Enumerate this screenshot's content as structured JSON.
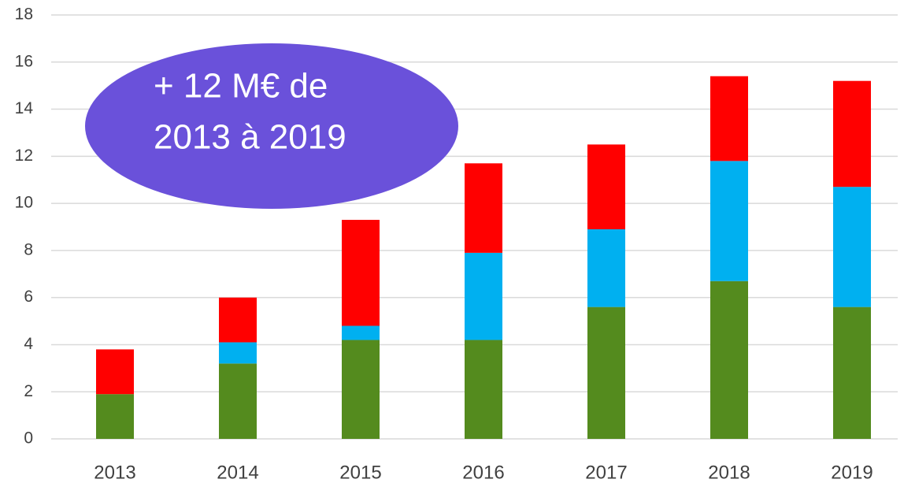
{
  "chart_data": {
    "type": "stacked_bar",
    "categories": [
      "2013",
      "2014",
      "2015",
      "2016",
      "2017",
      "2018",
      "2019"
    ],
    "series": [
      {
        "color": "#548b1e",
        "values": [
          1.9,
          3.2,
          4.2,
          4.2,
          5.6,
          6.7,
          5.6
        ]
      },
      {
        "color": "#00b0f0",
        "values": [
          0,
          0.9,
          0.6,
          3.7,
          3.3,
          5.1,
          5.1
        ]
      },
      {
        "color": "#ff0000",
        "values": [
          1.9,
          1.9,
          4.5,
          3.8,
          3.6,
          3.6,
          4.5
        ]
      }
    ],
    "ylim": [
      0,
      18
    ],
    "yticks": [
      0,
      2,
      4,
      6,
      8,
      10,
      12,
      14,
      16,
      18
    ],
    "grid": true,
    "annotation": {
      "lines": [
        "+ 12 M€ de",
        "2013 à 2019"
      ],
      "color": "#6a51da"
    }
  }
}
